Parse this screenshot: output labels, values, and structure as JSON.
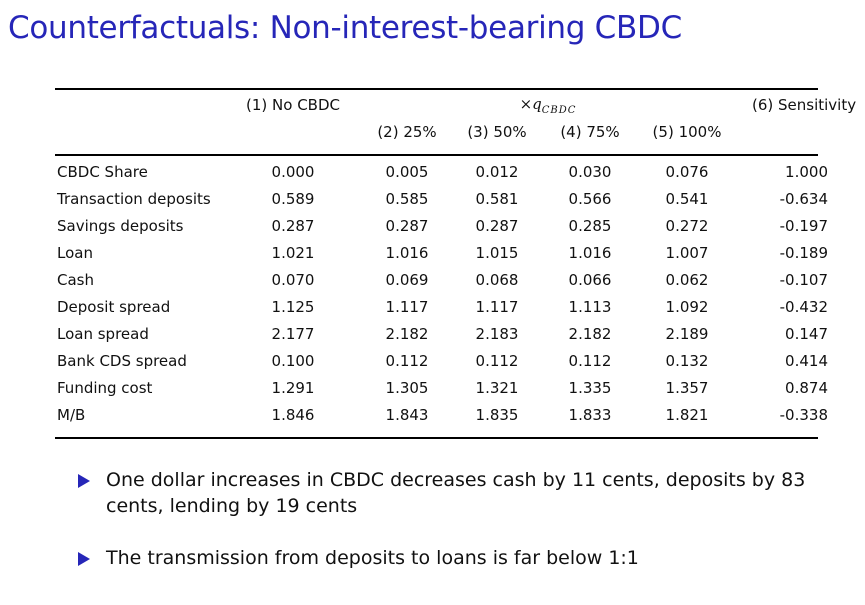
{
  "title": "Counterfactuals: Non-interest-bearing CBDC",
  "table": {
    "header_top": {
      "col1": "(1) No CBDC",
      "group_prefix": "×q",
      "group_sub": "CBDC",
      "col6": "(6) Sensitivity"
    },
    "header_sub": [
      "(2) 25%",
      "(3) 50%",
      "(4) 75%",
      "(5) 100%"
    ],
    "rows": [
      {
        "label": "CBDC Share",
        "values": [
          "0.000",
          "0.005",
          "0.012",
          "0.030",
          "0.076",
          "1.000"
        ]
      },
      {
        "label": "Transaction deposits",
        "values": [
          "0.589",
          "0.585",
          "0.581",
          "0.566",
          "0.541",
          "-0.634"
        ]
      },
      {
        "label": "Savings deposits",
        "values": [
          "0.287",
          "0.287",
          "0.287",
          "0.285",
          "0.272",
          "-0.197"
        ]
      },
      {
        "label": "Loan",
        "values": [
          "1.021",
          "1.016",
          "1.015",
          "1.016",
          "1.007",
          "-0.189"
        ]
      },
      {
        "label": "Cash",
        "values": [
          "0.070",
          "0.069",
          "0.068",
          "0.066",
          "0.062",
          "-0.107"
        ]
      },
      {
        "label": "Deposit spread",
        "values": [
          "1.125",
          "1.117",
          "1.117",
          "1.113",
          "1.092",
          "-0.432"
        ]
      },
      {
        "label": "Loan spread",
        "values": [
          "2.177",
          "2.182",
          "2.183",
          "2.182",
          "2.189",
          "0.147"
        ]
      },
      {
        "label": "Bank CDS spread",
        "values": [
          "0.100",
          "0.112",
          "0.112",
          "0.112",
          "0.132",
          "0.414"
        ]
      },
      {
        "label": "Funding cost",
        "values": [
          "1.291",
          "1.305",
          "1.321",
          "1.335",
          "1.357",
          "0.874"
        ]
      },
      {
        "label": "M/B",
        "values": [
          "1.846",
          "1.843",
          "1.835",
          "1.833",
          "1.821",
          "-0.338"
        ]
      }
    ]
  },
  "bullets": [
    "One dollar increases in CBDC decreases cash by 11 cents, deposits by 83 cents, lending by 19 cents",
    "The transmission from deposits to loans is far below 1:1"
  ],
  "colors": {
    "accent": "#2626b8"
  }
}
